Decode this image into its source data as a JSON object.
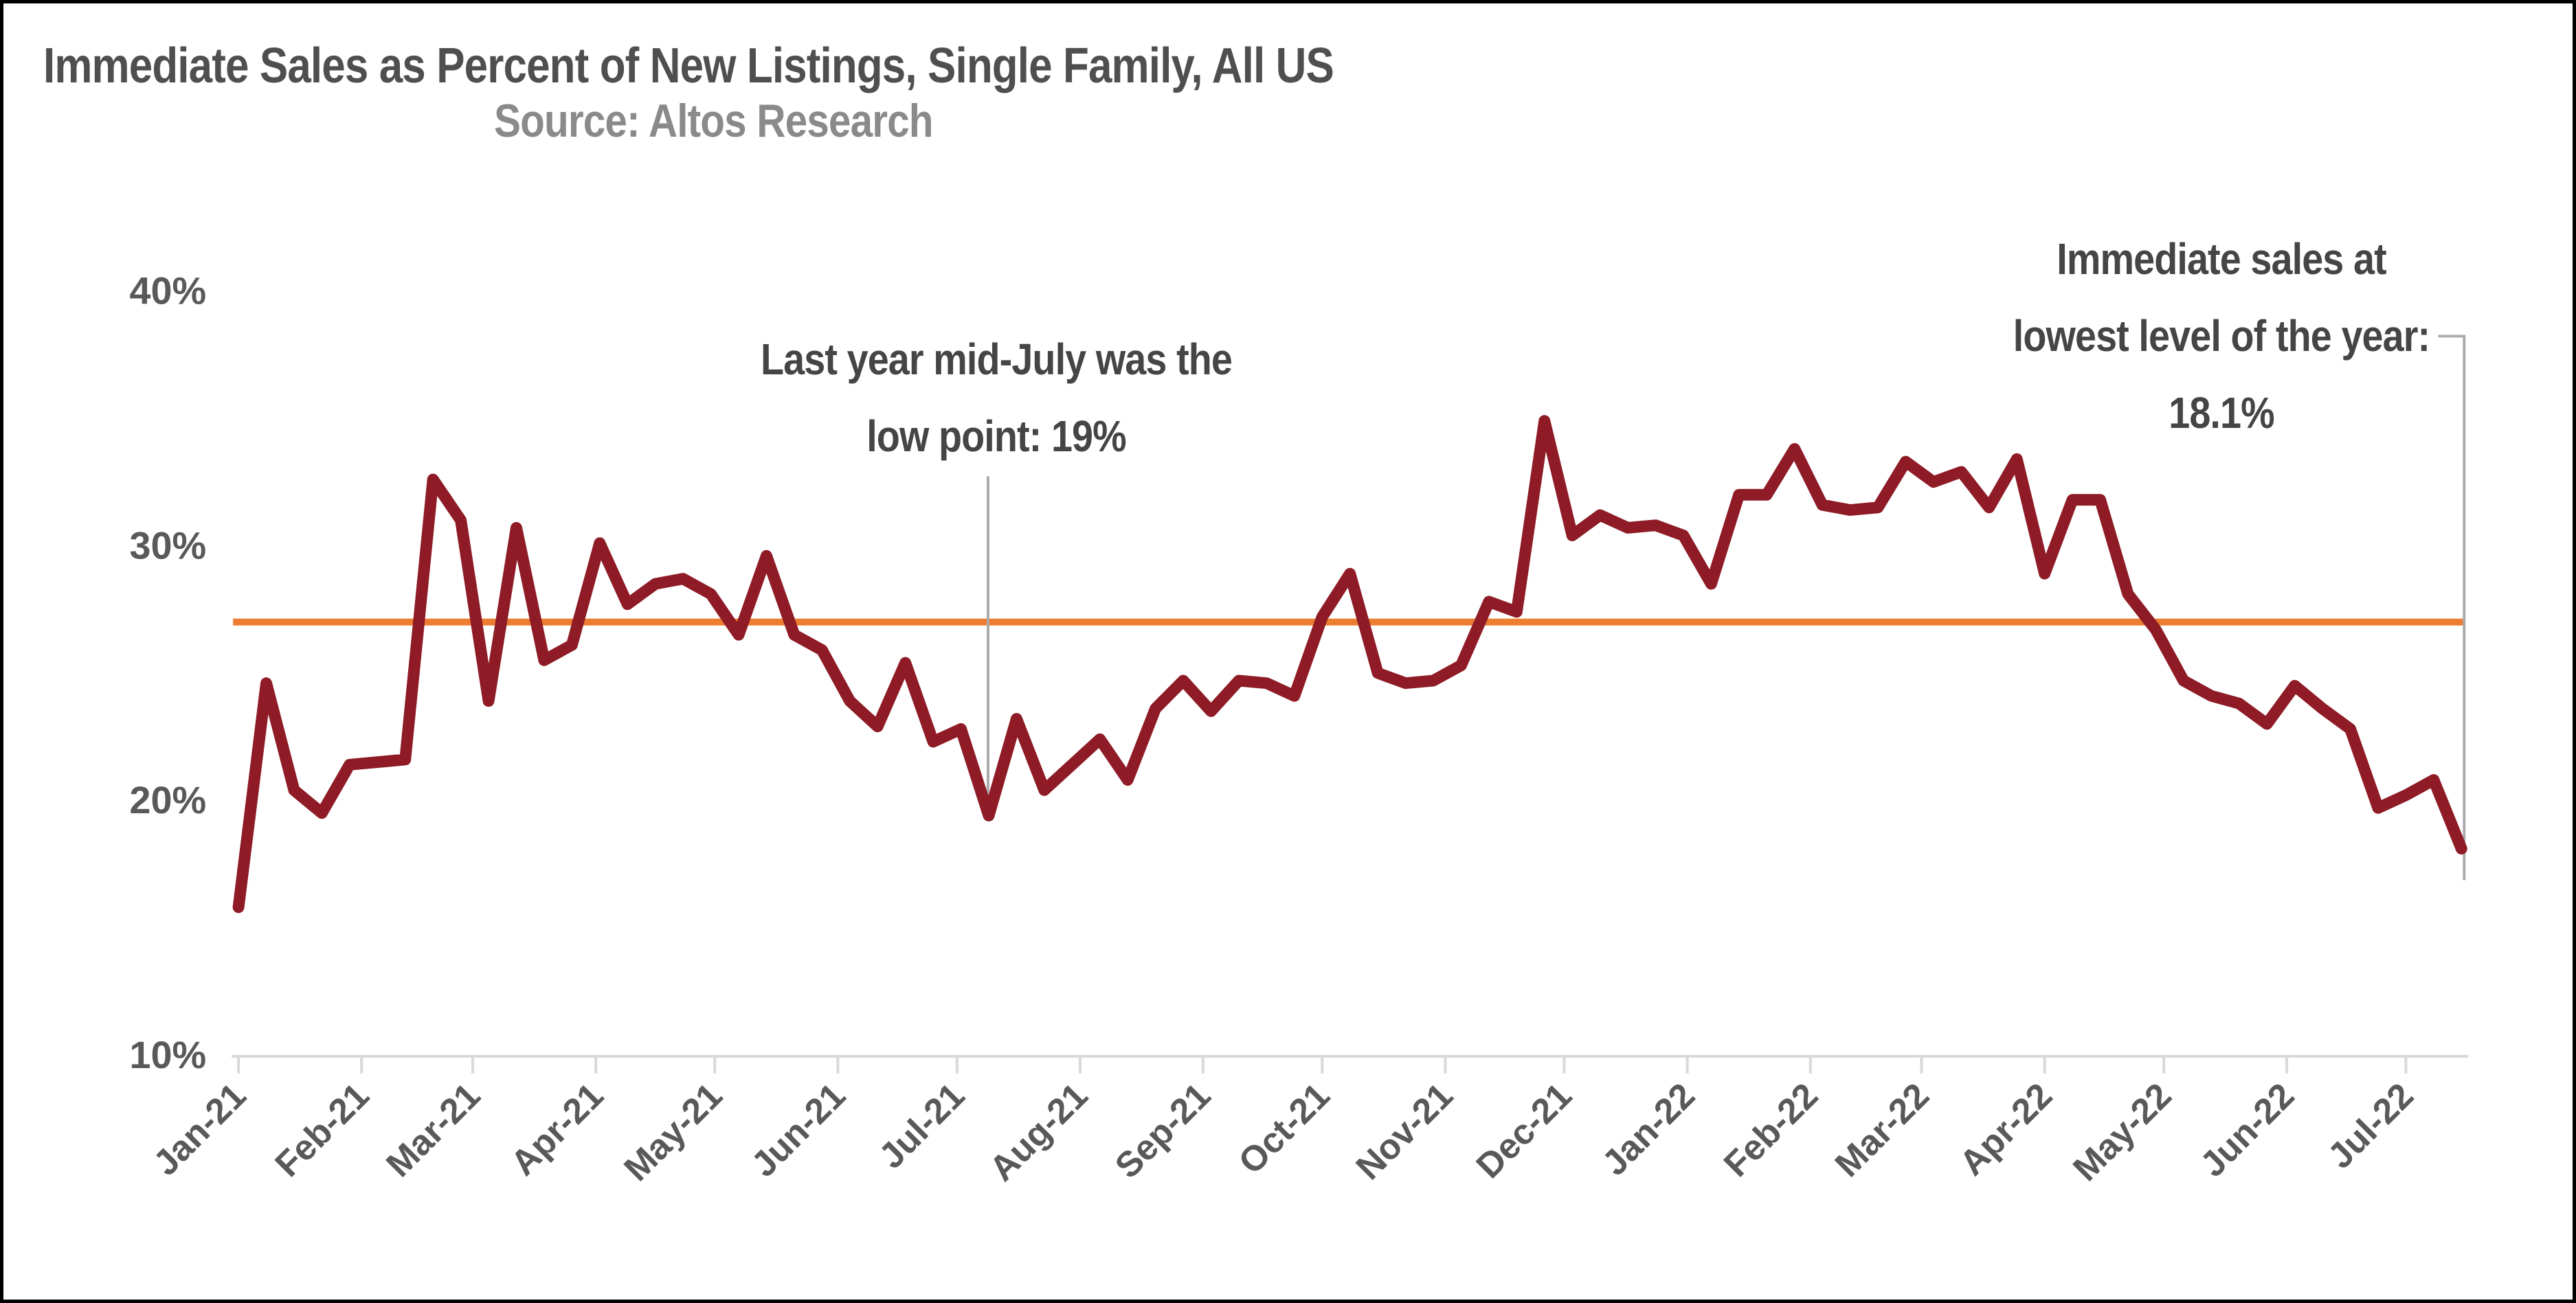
{
  "chart_data": {
    "type": "line",
    "title": "Immediate Sales as Percent of New Listings, Single Family, All US",
    "subtitle": "Source: Altos Research",
    "grid": false,
    "legend": "none",
    "ylim": [
      10,
      40
    ],
    "y_ticks": [
      {
        "label": "40%",
        "value": 40
      },
      {
        "label": "30%",
        "value": 30
      },
      {
        "label": "20%",
        "value": 20
      },
      {
        "label": "10%",
        "value": 10
      }
    ],
    "x_tick_labels": [
      "Jan-21",
      "Feb-21",
      "Mar-21",
      "Apr-21",
      "May-21",
      "Jun-21",
      "Jul-21",
      "Aug-21",
      "Sep-21",
      "Oct-21",
      "Nov-21",
      "Dec-21",
      "Jan-22",
      "Feb-22",
      "Mar-22",
      "Apr-22",
      "May-22",
      "Jun-22",
      "Jul-22"
    ],
    "x_tick_weeks": [
      0,
      4.43,
      8.43,
      12.86,
      17.14,
      21.57,
      25.86,
      30.29,
      34.71,
      39,
      43.43,
      47.71,
      52.14,
      56.57,
      60.57,
      65,
      69.29,
      73.71,
      78
    ],
    "x_unit": "weekly",
    "series": [
      {
        "name": "Immediate sales as percent of new listings",
        "color": "#8E1B26",
        "values": [
          15.8,
          24.6,
          20.4,
          19.5,
          21.4,
          21.5,
          21.6,
          32.6,
          31.0,
          23.9,
          30.7,
          25.5,
          26.1,
          30.1,
          27.7,
          28.5,
          28.7,
          28.1,
          26.5,
          29.6,
          26.5,
          25.9,
          23.9,
          22.9,
          25.4,
          22.3,
          22.8,
          19.4,
          23.2,
          20.4,
          21.4,
          22.4,
          20.8,
          23.6,
          24.7,
          23.5,
          24.7,
          24.6,
          24.1,
          27.2,
          28.9,
          25.0,
          24.6,
          24.7,
          25.3,
          27.8,
          27.4,
          34.9,
          30.4,
          31.2,
          30.7,
          30.8,
          30.4,
          28.5,
          32.0,
          32.0,
          33.8,
          31.6,
          31.4,
          31.5,
          33.3,
          32.5,
          32.9,
          31.5,
          33.4,
          28.9,
          31.8,
          31.8,
          28.1,
          26.7,
          24.7,
          24.1,
          23.8,
          23.0,
          24.5,
          23.6,
          22.8,
          19.7,
          20.2,
          20.8,
          18.1
        ]
      }
    ],
    "reference_line": {
      "value": 27,
      "color": "#ED7D31"
    },
    "annotations": [
      {
        "id": "july-low",
        "line1": "Last year mid-July was the",
        "line2": "low point: 19%",
        "week": 27
      },
      {
        "id": "current-low",
        "line1": "Immediate sales at",
        "line2": "lowest level of the year:",
        "line3": "18.1%",
        "week": 80
      }
    ],
    "colors": {
      "line": "#8E1B26",
      "reference": "#ED7D31",
      "axis": "#D9D9D9",
      "annotation_line": "#ABABAB",
      "title": "#4F4F4F",
      "subtitle": "#8A8A8A",
      "tick_text": "#595959",
      "annotation_text": "#454545"
    }
  }
}
